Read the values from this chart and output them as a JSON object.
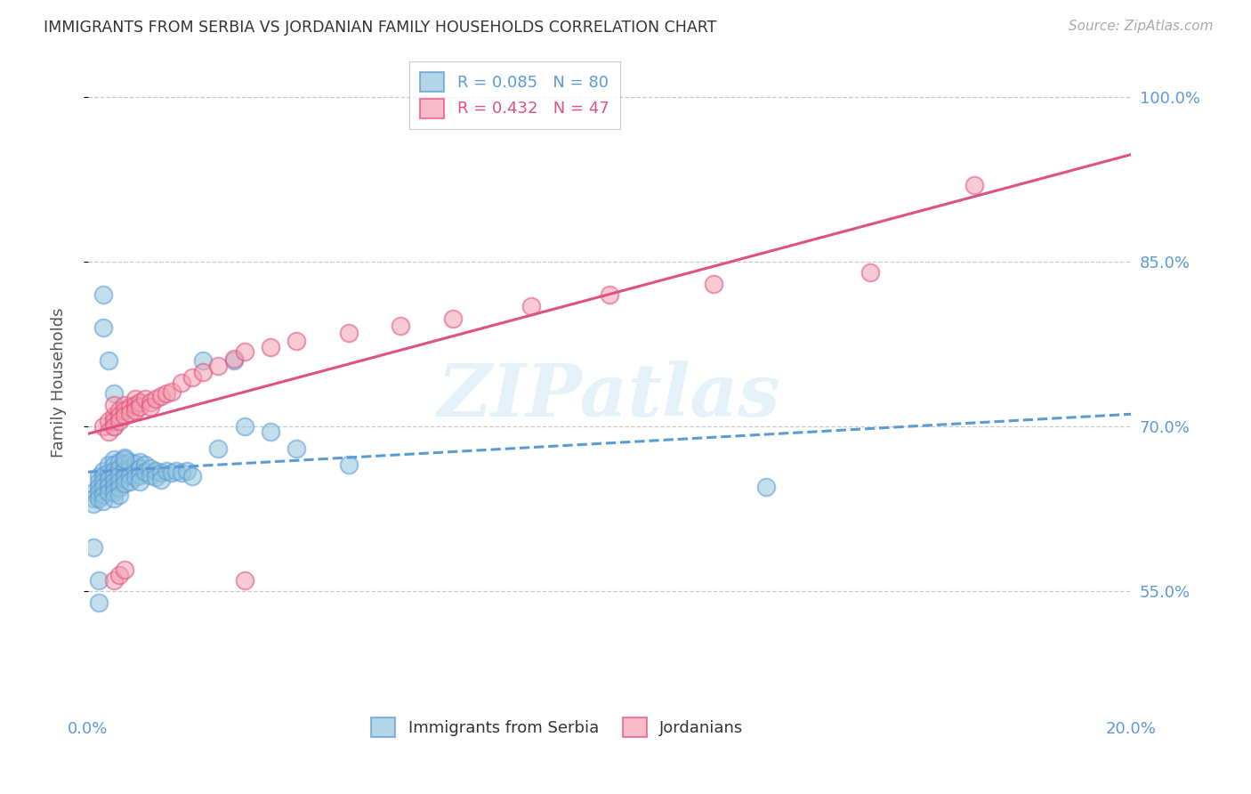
{
  "title": "IMMIGRANTS FROM SERBIA VS JORDANIAN FAMILY HOUSEHOLDS CORRELATION CHART",
  "source": "Source: ZipAtlas.com",
  "ylabel": "Family Households",
  "xlim": [
    0.0,
    0.2
  ],
  "ylim": [
    0.44,
    1.04
  ],
  "ytick_vals": [
    0.55,
    0.7,
    0.85,
    1.0
  ],
  "ytick_labels": [
    "55.0%",
    "70.0%",
    "85.0%",
    "100.0%"
  ],
  "xtick_vals": [
    0.0,
    0.04,
    0.08,
    0.12,
    0.16,
    0.2
  ],
  "xtick_labels_show": [
    "0.0%",
    "",
    "",
    "",
    "",
    "20.0%"
  ],
  "watermark": "ZIPatlas",
  "background_color": "#ffffff",
  "grid_color": "#c8c8c8",
  "title_color": "#333333",
  "axis_label_color": "#5b9bd5",
  "serbia_color": "#92c5de",
  "jordan_color": "#f4a0b0",
  "serbia_edge_color": "#5b9bd5",
  "jordan_edge_color": "#e05080",
  "serbia_trend_color": "#5b9bd5",
  "jordan_trend_color": "#e05080",
  "serbia_R": 0.085,
  "serbia_N": 80,
  "jordan_R": 0.432,
  "jordan_N": 47,
  "serbia_x": [
    0.001,
    0.001,
    0.001,
    0.002,
    0.002,
    0.002,
    0.002,
    0.002,
    0.003,
    0.003,
    0.003,
    0.003,
    0.003,
    0.003,
    0.004,
    0.004,
    0.004,
    0.004,
    0.004,
    0.005,
    0.005,
    0.005,
    0.005,
    0.005,
    0.005,
    0.005,
    0.005,
    0.006,
    0.006,
    0.006,
    0.006,
    0.006,
    0.006,
    0.007,
    0.007,
    0.007,
    0.007,
    0.007,
    0.008,
    0.008,
    0.008,
    0.008,
    0.009,
    0.009,
    0.009,
    0.01,
    0.01,
    0.01,
    0.01,
    0.011,
    0.011,
    0.012,
    0.012,
    0.013,
    0.013,
    0.014,
    0.014,
    0.015,
    0.016,
    0.017,
    0.018,
    0.019,
    0.02,
    0.022,
    0.025,
    0.028,
    0.03,
    0.035,
    0.04,
    0.05,
    0.001,
    0.002,
    0.002,
    0.003,
    0.003,
    0.004,
    0.005,
    0.005,
    0.007,
    0.13
  ],
  "serbia_y": [
    0.64,
    0.635,
    0.63,
    0.655,
    0.65,
    0.645,
    0.64,
    0.635,
    0.66,
    0.655,
    0.65,
    0.645,
    0.638,
    0.632,
    0.665,
    0.658,
    0.652,
    0.646,
    0.64,
    0.67,
    0.665,
    0.66,
    0.655,
    0.65,
    0.645,
    0.64,
    0.635,
    0.668,
    0.662,
    0.656,
    0.65,
    0.644,
    0.638,
    0.672,
    0.666,
    0.66,
    0.654,
    0.648,
    0.668,
    0.662,
    0.656,
    0.65,
    0.666,
    0.66,
    0.654,
    0.668,
    0.662,
    0.656,
    0.65,
    0.665,
    0.659,
    0.662,
    0.656,
    0.66,
    0.654,
    0.658,
    0.652,
    0.66,
    0.658,
    0.66,
    0.658,
    0.66,
    0.655,
    0.76,
    0.68,
    0.76,
    0.7,
    0.695,
    0.68,
    0.665,
    0.59,
    0.56,
    0.54,
    0.82,
    0.79,
    0.76,
    0.73,
    0.7,
    0.67,
    0.645
  ],
  "jordan_x": [
    0.003,
    0.004,
    0.004,
    0.005,
    0.005,
    0.005,
    0.005,
    0.006,
    0.006,
    0.006,
    0.007,
    0.007,
    0.007,
    0.008,
    0.008,
    0.009,
    0.009,
    0.009,
    0.01,
    0.01,
    0.011,
    0.012,
    0.012,
    0.013,
    0.014,
    0.015,
    0.016,
    0.018,
    0.02,
    0.022,
    0.025,
    0.028,
    0.03,
    0.035,
    0.04,
    0.05,
    0.06,
    0.07,
    0.085,
    0.1,
    0.12,
    0.15,
    0.17,
    0.005,
    0.006,
    0.007,
    0.03
  ],
  "jordan_y": [
    0.7,
    0.705,
    0.695,
    0.71,
    0.705,
    0.7,
    0.72,
    0.715,
    0.71,
    0.705,
    0.72,
    0.715,
    0.71,
    0.718,
    0.712,
    0.725,
    0.72,
    0.715,
    0.722,
    0.718,
    0.725,
    0.722,
    0.718,
    0.725,
    0.728,
    0.73,
    0.732,
    0.74,
    0.745,
    0.75,
    0.755,
    0.762,
    0.768,
    0.772,
    0.778,
    0.785,
    0.792,
    0.798,
    0.81,
    0.82,
    0.83,
    0.84,
    0.92,
    0.56,
    0.565,
    0.57,
    0.56
  ]
}
